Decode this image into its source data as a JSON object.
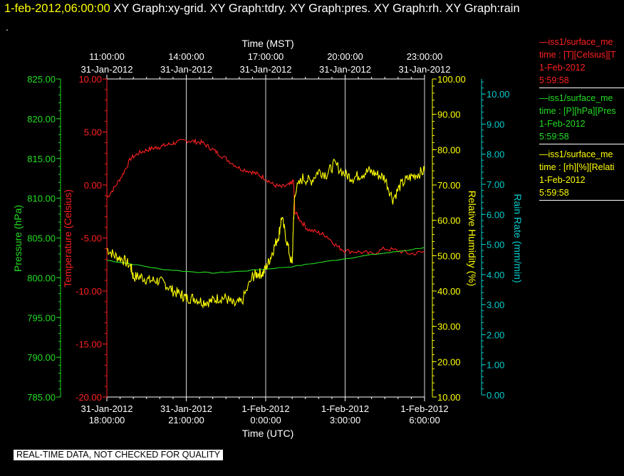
{
  "header": {
    "timestamp": "1-feb-2012,06:00:00",
    "graphs": " XY Graph:xy-grid.  XY Graph:tdry.  XY Graph:pres.  XY Graph:rh.  XY Graph:rain",
    "dot": "."
  },
  "legend": [
    {
      "series": "—iss1/surface_me",
      "vars": "time : [T][Celsius][T",
      "date": "1-Feb-2012",
      "time": "5:59:58",
      "color": "#ff2020"
    },
    {
      "series": "—iss1/surface_me",
      "vars": "time : [P][hPa][Pres",
      "date": "1-Feb-2012",
      "time": "5:59:58",
      "color": "#22dd22"
    },
    {
      "series": "—iss1/surface_me",
      "vars": "time : [rh][%][Relati",
      "date": "1-Feb-2012",
      "time": "5:59:58",
      "color": "#ffff00"
    }
  ],
  "footer": "REAL-TIME DATA, NOT CHECKED FOR QUALITY",
  "colors": {
    "background": "#000000",
    "temperature": "#ff2020",
    "pressure": "#22dd22",
    "humidity": "#ffff00",
    "rain": "#00cccc",
    "grid": "#ffffff"
  },
  "chart_data": {
    "type": "line",
    "top_axis": {
      "label": "Time (MST)",
      "ticks": [
        {
          "time": "11:00:00",
          "date": "31-Jan-2012"
        },
        {
          "time": "14:00:00",
          "date": "31-Jan-2012"
        },
        {
          "time": "17:00:00",
          "date": "31-Jan-2012"
        },
        {
          "time": "20:00:00",
          "date": "31-Jan-2012"
        },
        {
          "time": "23:00:00",
          "date": "31-Jan-2012"
        }
      ]
    },
    "bottom_axis": {
      "label": "Time (UTC)",
      "range_hours": [
        0,
        12
      ],
      "ticks": [
        {
          "date": "31-Jan-2012",
          "time": "18:00:00",
          "h": 0
        },
        {
          "date": "31-Jan-2012",
          "time": "21:00:00",
          "h": 3
        },
        {
          "date": "1-Feb-2012",
          "time": "0:00:00",
          "h": 6
        },
        {
          "date": "1-Feb-2012",
          "time": "3:00:00",
          "h": 9
        },
        {
          "date": "1-Feb-2012",
          "time": "6:00:00",
          "h": 12
        }
      ]
    },
    "grid": "vertical",
    "y_axes": [
      {
        "key": "pressure",
        "label": "Pressure (hPa)",
        "range": [
          785,
          825
        ],
        "ticks": [
          "785.00",
          "790.00",
          "795.00",
          "800.00",
          "805.00",
          "810.00",
          "815.00",
          "820.00",
          "825.00"
        ]
      },
      {
        "key": "temperature",
        "label": "Temperature (Celsius)",
        "range": [
          -20,
          10
        ],
        "ticks": [
          "-20.00",
          "-15.00",
          "-10.00",
          "-5.00",
          "0.00",
          "5.00",
          "10.00"
        ]
      },
      {
        "key": "humidity",
        "label": "Relative Humidity (%)",
        "range": [
          10,
          100
        ],
        "ticks": [
          "10.00",
          "20.00",
          "30.00",
          "40.00",
          "50.00",
          "60.00",
          "70.00",
          "80.00",
          "90.00",
          "100.00"
        ]
      },
      {
        "key": "rain",
        "label": "Rain Rate (mm/min)",
        "range": [
          0,
          10.5
        ],
        "ticks": [
          "0.00",
          "1.00",
          "2.00",
          "3.00",
          "4.00",
          "5.00",
          "6.00",
          "7.00",
          "8.00",
          "9.00",
          "10.00"
        ]
      }
    ],
    "series": [
      {
        "key": "temperature",
        "x": [
          0,
          0.3,
          0.6,
          0.9,
          1.2,
          1.5,
          1.8,
          2.0,
          2.3,
          2.6,
          3.0,
          3.3,
          3.6,
          3.9,
          4.2,
          4.6,
          5.0,
          5.4,
          5.7,
          6.0,
          6.3,
          6.6,
          6.9,
          7.05,
          7.1,
          7.3,
          7.6,
          8.0,
          8.3,
          8.7,
          9.0,
          9.5,
          10.0,
          10.5,
          11.0,
          11.5,
          12.0
        ],
        "y": [
          -1.2,
          -0.2,
          1.0,
          2.5,
          3.0,
          3.3,
          3.5,
          3.6,
          3.8,
          4.0,
          4.2,
          4.1,
          4.0,
          3.5,
          3.0,
          2.3,
          1.6,
          1.3,
          1.0,
          0.6,
          0.0,
          -0.2,
          0.0,
          0.4,
          -2.5,
          -3.3,
          -4.2,
          -4.5,
          -4.8,
          -5.8,
          -6.2,
          -6.3,
          -6.5,
          -6.0,
          -6.2,
          -6.5,
          -6.3
        ]
      },
      {
        "key": "pressure",
        "x": [
          0,
          1,
          2,
          3,
          4,
          5,
          6,
          7,
          8,
          9,
          10,
          11,
          12
        ],
        "y": [
          802.2,
          801.7,
          801.1,
          800.8,
          800.6,
          800.8,
          801.1,
          801.4,
          801.9,
          802.4,
          802.9,
          803.3,
          803.8
        ]
      },
      {
        "key": "humidity",
        "x": [
          0,
          0.3,
          0.6,
          0.9,
          1.0,
          1.3,
          1.6,
          1.9,
          2.2,
          2.5,
          2.8,
          3.0,
          3.3,
          3.6,
          3.9,
          4.2,
          4.5,
          4.8,
          5.1,
          5.5,
          5.7,
          5.9,
          6.1,
          6.3,
          6.5,
          6.6,
          6.8,
          7.0,
          7.05,
          7.1,
          7.4,
          7.7,
          8.0,
          8.3,
          8.6,
          9.0,
          9.3,
          9.6,
          9.9,
          10.2,
          10.5,
          10.8,
          11.1,
          11.4,
          11.7,
          12.0
        ],
        "y": [
          52,
          50,
          49,
          47,
          44,
          44,
          43,
          43,
          42,
          40,
          39,
          38,
          38,
          37,
          37,
          38,
          38,
          36,
          37,
          44,
          45,
          45,
          48,
          52,
          56,
          61,
          54,
          47,
          60,
          68,
          72,
          71,
          74,
          73,
          76,
          73,
          72,
          73,
          74,
          73,
          72,
          66,
          70,
          72,
          73,
          74
        ]
      },
      {
        "key": "rain",
        "x": [
          0,
          12
        ],
        "y": [
          0,
          0
        ]
      }
    ]
  }
}
